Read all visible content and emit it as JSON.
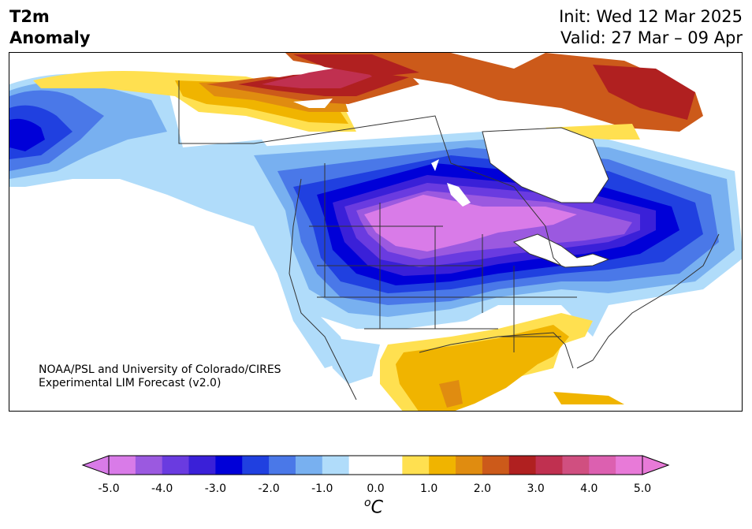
{
  "header": {
    "title_line1": "T2m",
    "title_line2": "Anomaly",
    "init_line": "Init: Wed 12 Mar 2025",
    "valid_line": "Valid: 27 Mar – 09 Apr"
  },
  "credit": {
    "line1": "NOAA/PSL and University of Colorado/CIRES",
    "line2": "Experimental LIM Forecast (v2.0)"
  },
  "colorbar": {
    "unit_base": "C",
    "unit_sup": "o",
    "ticks": [
      "-5.0",
      "-4.0",
      "-3.0",
      "-2.0",
      "-1.0",
      "0.0",
      "1.0",
      "2.0",
      "3.0",
      "4.0",
      "5.0"
    ],
    "colors": [
      "#d97be8",
      "#9b59e0",
      "#6a3be0",
      "#3a20d8",
      "#0000d8",
      "#2040e0",
      "#4a78e8",
      "#78b0f0",
      "#b0dcfa",
      "#ffffff",
      "#ffffff",
      "#ffe050",
      "#f0b400",
      "#e08c10",
      "#cc5a1a",
      "#b02020",
      "#c03050",
      "#d04f80",
      "#dc60b0",
      "#e87ad8"
    ],
    "min_color": "#d97be8",
    "max_color": "#e87ad8"
  },
  "map_colors": {
    "strong_cold": "#d97be8",
    "purple": "#9b59e0",
    "violet": "#6a3be0",
    "indigo": "#3a20d8",
    "blue": "#0000d8",
    "mid_blue": "#2040e0",
    "light_blue": "#4a78e8",
    "sky": "#78b0f0",
    "pale_sky": "#b0dcfa",
    "yellow": "#ffe050",
    "gold": "#f0b400",
    "orange": "#e08c10",
    "burnt": "#cc5a1a",
    "red": "#b02020",
    "rose": "#c03050"
  }
}
